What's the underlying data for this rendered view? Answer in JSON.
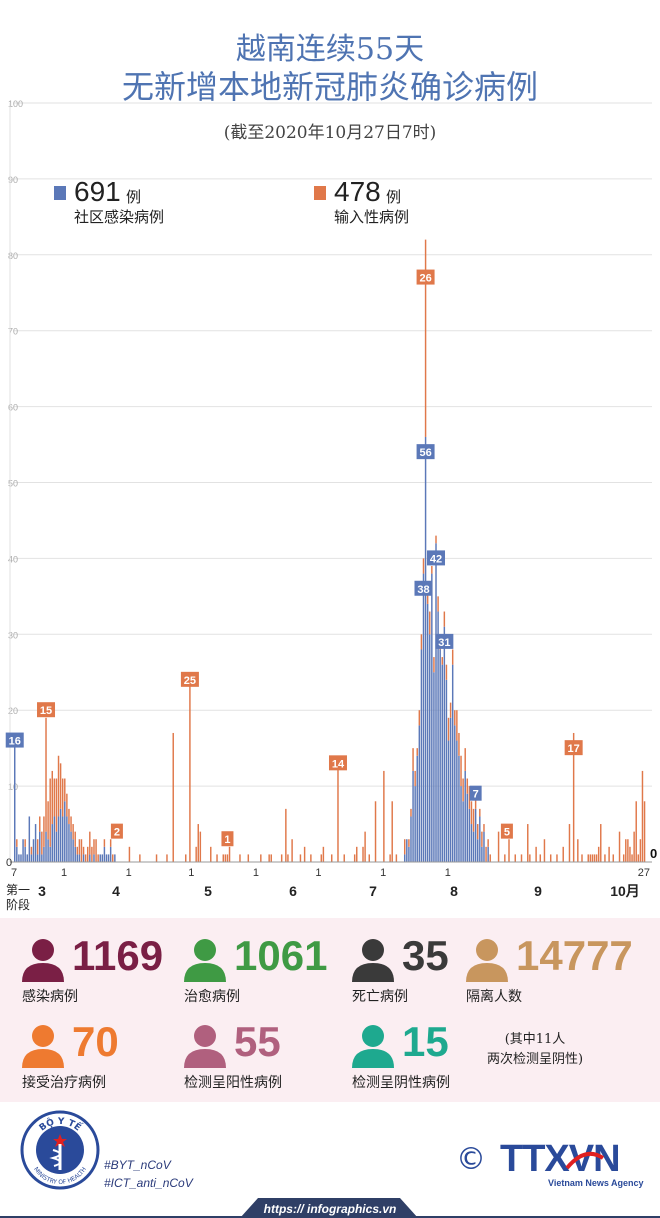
{
  "header": {
    "title_line1": "越南连续55天",
    "title_line2": "无新增本地新冠肺炎确诊病例",
    "subtitle": "(截至2020年10月27日7时)"
  },
  "legend": {
    "community": {
      "count": "691",
      "unit": "例",
      "label": "社区感染病例",
      "color": "#5b78b8"
    },
    "imported": {
      "count": "478",
      "unit": "例",
      "label": "输入性病例",
      "color": "#e0784a"
    }
  },
  "chart_data": {
    "type": "bar",
    "stacked": true,
    "ylim": [
      0,
      100
    ],
    "yticks": [
      0,
      10,
      20,
      30,
      40,
      50,
      60,
      70,
      80,
      90,
      100
    ],
    "series": [
      {
        "name": "社区感染病例",
        "color": "#5b78b8"
      },
      {
        "name": "输入性病例",
        "color": "#e0784a"
      }
    ],
    "month_labels": [
      "3",
      "4",
      "5",
      "6",
      "7",
      "8",
      "9",
      "10月"
    ],
    "day_tick_labels": [
      "7",
      "1",
      "1",
      "1",
      "1",
      "1",
      "1",
      "1",
      "27"
    ],
    "stage_label": "第一\n阶段",
    "start_value": "0",
    "end_value": "0",
    "bars": [
      [
        0,
        16,
        0
      ],
      [
        1,
        2,
        1
      ],
      [
        2,
        1,
        0
      ],
      [
        3,
        1,
        0
      ],
      [
        4,
        3,
        0
      ],
      [
        5,
        2,
        1
      ],
      [
        6,
        1,
        0
      ],
      [
        7,
        6,
        0
      ],
      [
        8,
        1,
        1
      ],
      [
        9,
        3,
        0
      ],
      [
        10,
        5,
        0
      ],
      [
        11,
        1,
        2
      ],
      [
        12,
        4,
        2
      ],
      [
        13,
        1,
        3
      ],
      [
        14,
        2,
        4
      ],
      [
        15,
        4,
        15
      ],
      [
        16,
        3,
        5
      ],
      [
        17,
        2,
        9
      ],
      [
        18,
        5,
        7
      ],
      [
        19,
        6,
        5
      ],
      [
        20,
        4,
        7
      ],
      [
        21,
        6,
        8
      ],
      [
        22,
        7,
        6
      ],
      [
        23,
        6,
        5
      ],
      [
        24,
        8,
        3
      ],
      [
        25,
        6,
        3
      ],
      [
        26,
        5,
        2
      ],
      [
        27,
        4,
        2
      ],
      [
        28,
        3,
        2
      ],
      [
        29,
        2,
        2
      ],
      [
        30,
        1,
        1
      ],
      [
        31,
        1,
        2
      ],
      [
        32,
        0,
        3
      ],
      [
        33,
        1,
        1
      ],
      [
        34,
        0,
        1
      ],
      [
        35,
        0,
        2
      ],
      [
        36,
        1,
        3
      ],
      [
        37,
        0,
        2
      ],
      [
        38,
        1,
        2
      ],
      [
        39,
        0,
        3
      ],
      [
        40,
        0,
        1
      ],
      [
        41,
        1,
        0
      ],
      [
        42,
        1,
        0
      ],
      [
        43,
        2,
        1
      ],
      [
        44,
        1,
        0
      ],
      [
        45,
        1,
        0
      ],
      [
        46,
        2,
        1
      ],
      [
        47,
        0,
        1
      ],
      [
        48,
        1,
        0
      ],
      [
        49,
        0,
        0
      ],
      [
        55,
        0,
        2
      ],
      [
        60,
        0,
        1
      ],
      [
        68,
        0,
        1
      ],
      [
        73,
        0,
        1
      ],
      [
        76,
        0,
        17
      ],
      [
        82,
        0,
        1
      ],
      [
        84,
        0,
        25
      ],
      [
        87,
        0,
        2
      ],
      [
        88,
        0,
        5
      ],
      [
        89,
        0,
        4
      ],
      [
        94,
        0,
        2
      ],
      [
        97,
        0,
        1
      ],
      [
        100,
        0,
        1
      ],
      [
        101,
        0,
        1
      ],
      [
        102,
        0,
        1
      ],
      [
        103,
        0,
        2
      ],
      [
        108,
        0,
        1
      ],
      [
        112,
        0,
        1
      ],
      [
        118,
        0,
        1
      ],
      [
        122,
        0,
        1
      ],
      [
        123,
        0,
        1
      ],
      [
        128,
        0,
        1
      ],
      [
        130,
        0,
        7
      ],
      [
        131,
        0,
        1
      ],
      [
        133,
        0,
        3
      ],
      [
        137,
        0,
        1
      ],
      [
        139,
        0,
        2
      ],
      [
        142,
        0,
        1
      ],
      [
        147,
        0,
        1
      ],
      [
        148,
        0,
        2
      ],
      [
        152,
        0,
        1
      ],
      [
        155,
        0,
        14
      ],
      [
        158,
        0,
        1
      ],
      [
        163,
        0,
        1
      ],
      [
        164,
        0,
        2
      ],
      [
        167,
        0,
        2
      ],
      [
        168,
        0,
        4
      ],
      [
        170,
        0,
        1
      ],
      [
        173,
        0,
        8
      ],
      [
        177,
        0,
        12
      ],
      [
        180,
        0,
        1
      ],
      [
        181,
        0,
        8
      ],
      [
        183,
        0,
        1
      ],
      [
        187,
        1,
        2
      ],
      [
        188,
        3,
        0
      ],
      [
        189,
        2,
        1
      ],
      [
        190,
        6,
        1
      ],
      [
        191,
        12,
        3
      ],
      [
        192,
        10,
        2
      ],
      [
        193,
        14,
        1
      ],
      [
        194,
        18,
        2
      ],
      [
        195,
        28,
        2
      ],
      [
        196,
        38,
        2
      ],
      [
        197,
        56,
        26
      ],
      [
        198,
        34,
        2
      ],
      [
        199,
        30,
        3
      ],
      [
        200,
        38,
        1
      ],
      [
        201,
        25,
        2
      ],
      [
        202,
        42,
        1
      ],
      [
        203,
        33,
        2
      ],
      [
        204,
        28,
        2
      ],
      [
        205,
        26,
        1
      ],
      [
        206,
        31,
        2
      ],
      [
        207,
        24,
        2
      ],
      [
        208,
        16,
        3
      ],
      [
        209,
        19,
        2
      ],
      [
        210,
        26,
        2
      ],
      [
        211,
        18,
        2
      ],
      [
        212,
        16,
        4
      ],
      [
        213,
        14,
        3
      ],
      [
        214,
        10,
        4
      ],
      [
        215,
        8,
        3
      ],
      [
        216,
        12,
        3
      ],
      [
        217,
        9,
        2
      ],
      [
        218,
        7,
        3
      ],
      [
        219,
        5,
        3
      ],
      [
        220,
        4,
        3
      ],
      [
        221,
        7,
        2
      ],
      [
        222,
        3,
        2
      ],
      [
        223,
        6,
        1
      ],
      [
        224,
        2,
        2
      ],
      [
        225,
        4,
        1
      ],
      [
        226,
        0,
        2
      ],
      [
        227,
        2,
        1
      ],
      [
        228,
        0,
        1
      ],
      [
        232,
        0,
        4
      ],
      [
        235,
        0,
        1
      ],
      [
        237,
        0,
        3
      ],
      [
        240,
        0,
        1
      ],
      [
        243,
        0,
        1
      ],
      [
        246,
        0,
        5
      ],
      [
        247,
        0,
        1
      ],
      [
        250,
        0,
        2
      ],
      [
        252,
        0,
        1
      ],
      [
        254,
        0,
        3
      ],
      [
        257,
        0,
        1
      ],
      [
        260,
        0,
        1
      ],
      [
        263,
        0,
        2
      ],
      [
        266,
        0,
        5
      ],
      [
        268,
        0,
        17
      ],
      [
        270,
        0,
        3
      ],
      [
        272,
        0,
        1
      ],
      [
        275,
        0,
        1
      ],
      [
        276,
        0,
        1
      ],
      [
        277,
        0,
        1
      ],
      [
        278,
        0,
        1
      ],
      [
        279,
        0,
        1
      ],
      [
        280,
        0,
        2
      ],
      [
        281,
        0,
        5
      ],
      [
        283,
        0,
        1
      ],
      [
        285,
        0,
        2
      ],
      [
        287,
        0,
        1
      ],
      [
        290,
        0,
        4
      ],
      [
        292,
        0,
        1
      ],
      [
        293,
        0,
        3
      ],
      [
        294,
        0,
        3
      ],
      [
        295,
        0,
        2
      ],
      [
        296,
        0,
        1
      ],
      [
        297,
        0,
        4
      ],
      [
        298,
        0,
        8
      ],
      [
        299,
        0,
        1
      ],
      [
        300,
        0,
        3
      ],
      [
        301,
        0,
        12
      ],
      [
        302,
        0,
        8
      ]
    ],
    "annotations": [
      {
        "index": 0,
        "label": "16",
        "value": 16,
        "series": "社区感染病例"
      },
      {
        "index": 15,
        "label": "15",
        "value": 20,
        "series": "输入性病例"
      },
      {
        "index": 49,
        "label": "2",
        "value": 4,
        "series": "输入性病例"
      },
      {
        "index": 84,
        "label": "25",
        "value": 24,
        "series": "输入性病例"
      },
      {
        "index": 102,
        "label": "1",
        "value": 3,
        "series": "输入性病例"
      },
      {
        "index": 155,
        "label": "14",
        "value": 13,
        "series": "输入性病例"
      },
      {
        "index": 197,
        "label": "26",
        "value": 77,
        "series": "输入性病例"
      },
      {
        "index": 197,
        "label": "56",
        "value": 54,
        "series": "社区感染病例"
      },
      {
        "index": 196,
        "label": "38",
        "value": 36,
        "series": "社区感染病例"
      },
      {
        "index": 202,
        "label": "42",
        "value": 40,
        "series": "社区感染病例"
      },
      {
        "index": 206,
        "label": "31",
        "value": 29,
        "series": "社区感染病例"
      },
      {
        "index": 221,
        "label": "7",
        "value": 9,
        "series": "社区感染病例"
      },
      {
        "index": 236,
        "label": "5",
        "value": 4,
        "series": "输入性病例"
      },
      {
        "index": 268,
        "label": "17",
        "value": 15,
        "series": "输入性病例"
      }
    ]
  },
  "stats": [
    {
      "key": "infected",
      "value": "1169",
      "label": "感染病例",
      "color": "#7a1f45"
    },
    {
      "key": "recovered",
      "value": "1061",
      "label": "治愈病例",
      "color": "#3f9a44"
    },
    {
      "key": "deaths",
      "value": "35",
      "label": "死亡病例",
      "color": "#3a3a3a"
    },
    {
      "key": "isolated",
      "value": "14777",
      "label": "隔离人数",
      "color": "#c8965e"
    },
    {
      "key": "treating",
      "value": "70",
      "label": "接受治疗病例",
      "color": "#ee7a30"
    },
    {
      "key": "retest_positive",
      "value": "55",
      "label": "检测呈阳性病例",
      "color": "#b0607e"
    },
    {
      "key": "retest_negative",
      "value": "15",
      "label": "检测呈阴性病例",
      "color": "#1ea98f"
    }
  ],
  "note": {
    "line1": "(其中11人",
    "line2": "两次检测呈阴性)"
  },
  "footer": {
    "ministry_top": "BỘ Y TẾ",
    "ministry_bottom": "MINISTRY OF HEALTH",
    "hashtag1": "#BYT_nCoV",
    "hashtag2": "#ICT_anti_nCoV",
    "copyright": "©",
    "agency_logo": "TTXVN",
    "agency_sub": "Vietnam News Agency",
    "url": "https:// infographics.vn"
  }
}
